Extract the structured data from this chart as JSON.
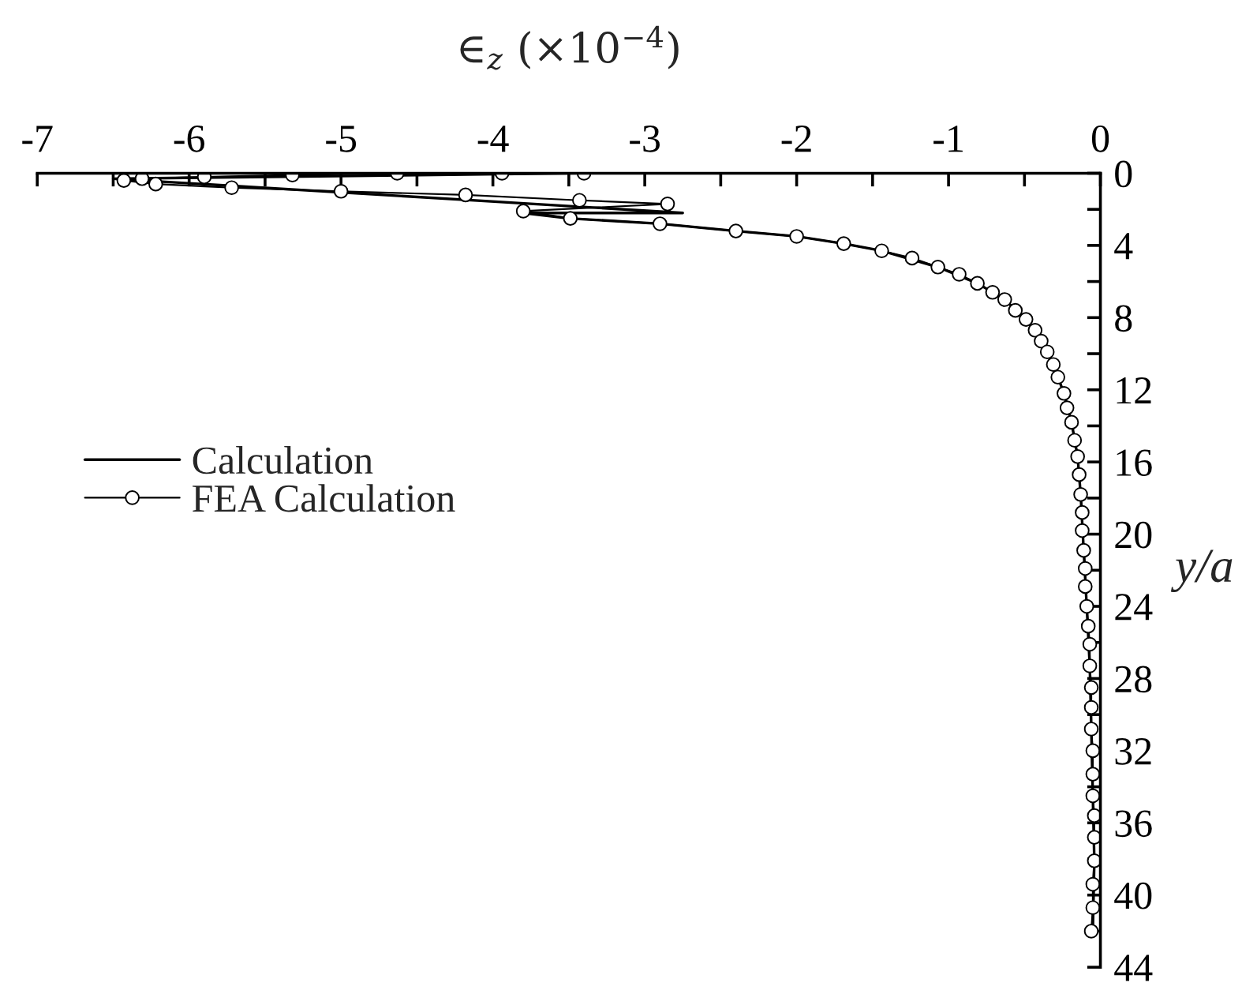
{
  "chart_data": {
    "type": "line",
    "xlabel": "∈$_{z}$ (×10$^{−4}$)",
    "ylabel": "y/a",
    "xlim": [
      -7,
      0
    ],
    "xticks": [
      -7,
      {
        "value": -6.5,
        "label": null
      },
      -6,
      {
        "value": -5.5,
        "label": null
      },
      -5,
      {
        "value": -4.5,
        "label": null
      },
      -4,
      {
        "value": -3.5,
        "label": null
      },
      -3,
      {
        "value": -2.5,
        "label": null
      },
      -2,
      {
        "value": -1.5,
        "label": null
      },
      -1,
      {
        "value": -0.5,
        "label": null
      },
      0
    ],
    "ylim": [
      44,
      0
    ],
    "yticks": [
      0,
      {
        "value": 2,
        "label": null
      },
      4,
      {
        "value": 6,
        "label": null
      },
      8,
      {
        "value": 10,
        "label": null
      },
      12,
      {
        "value": 14,
        "label": null
      },
      16,
      {
        "value": 18,
        "label": null
      },
      20,
      {
        "value": 22,
        "label": null
      },
      24,
      {
        "value": 26,
        "label": null
      },
      28,
      {
        "value": 30,
        "label": null
      },
      32,
      {
        "value": 34,
        "label": null
      },
      36,
      {
        "value": 38,
        "label": null
      },
      40,
      {
        "value": 42,
        "label": null
      },
      44
    ],
    "legend": "left",
    "series": [
      {
        "name": "Calculation",
        "color": "#000000",
        "line_style": "solid",
        "x": [
          -3.42,
          -6.5,
          -2.75,
          -3.8,
          -3.5,
          -2.9,
          -2.4,
          -2.0,
          -1.69,
          -1.44,
          -1.07,
          -0.81,
          -0.63,
          -0.49,
          -0.39,
          -0.31,
          -0.24,
          -0.19,
          -0.15,
          -0.13,
          -0.11,
          -0.09,
          -0.07,
          -0.06,
          -0.05,
          -0.04,
          -0.05
        ],
        "values": [
          0.0,
          0.3,
          2.2,
          2.2,
          2.5,
          2.8,
          3.2,
          3.5,
          3.9,
          4.3,
          5.2,
          6.1,
          7.0,
          8.1,
          9.3,
          10.6,
          12.2,
          13.8,
          15.7,
          17.8,
          20.9,
          24.0,
          27.3,
          30.8,
          34.5,
          38.1,
          42.0
        ]
      },
      {
        "name": "FEA Calculation",
        "color": "#000000",
        "marker": "circle",
        "line_style": "solid",
        "x": [
          -3.4,
          -3.94,
          -4.63,
          -5.32,
          -5.9,
          -6.31,
          -6.43,
          -6.22,
          -5.72,
          -5.0,
          -4.18,
          -3.43,
          -2.85,
          -3.8,
          -3.49,
          -2.9,
          -2.4,
          -2.0,
          -1.69,
          -1.44,
          -1.24,
          -1.07,
          -0.93,
          -0.81,
          -0.71,
          -0.63,
          -0.56,
          -0.49,
          -0.43,
          -0.39,
          -0.35,
          -0.31,
          -0.28,
          -0.24,
          -0.22,
          -0.19,
          -0.17,
          -0.15,
          -0.14,
          -0.13,
          -0.12,
          -0.12,
          -0.11,
          -0.1,
          -0.1,
          -0.09,
          -0.08,
          -0.07,
          -0.07,
          -0.06,
          -0.06,
          -0.06,
          -0.05,
          -0.05,
          -0.05,
          -0.04,
          -0.04,
          -0.04,
          -0.05,
          -0.05,
          -0.06
        ],
        "values": [
          0.0,
          0.0,
          0.0,
          0.1,
          0.2,
          0.3,
          0.4,
          0.6,
          0.8,
          1.0,
          1.2,
          1.5,
          1.7,
          2.1,
          2.5,
          2.8,
          3.2,
          3.5,
          3.9,
          4.3,
          4.7,
          5.2,
          5.6,
          6.1,
          6.6,
          7.0,
          7.6,
          8.1,
          8.7,
          9.3,
          9.9,
          10.6,
          11.3,
          12.2,
          13.0,
          13.8,
          14.8,
          15.7,
          16.7,
          17.8,
          18.8,
          19.8,
          20.9,
          21.9,
          22.9,
          24.0,
          25.1,
          26.1,
          27.3,
          28.5,
          29.6,
          30.8,
          32.0,
          33.3,
          34.5,
          35.6,
          36.8,
          38.1,
          39.4,
          40.7,
          42.0
        ]
      }
    ]
  }
}
